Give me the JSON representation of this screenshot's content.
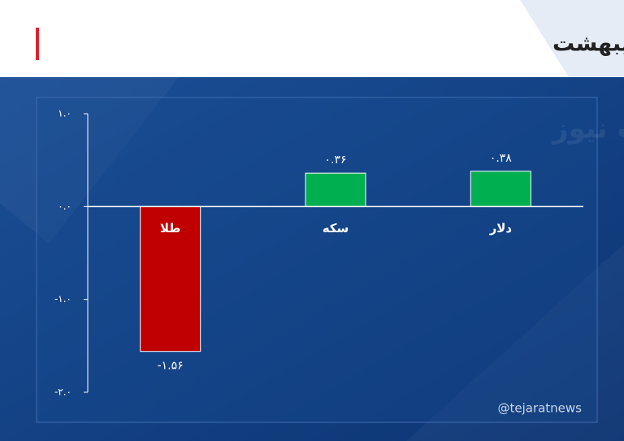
{
  "chart_data": {
    "type": "bar",
    "title": "جدول مقایسه‌ای بازدهی بازارها در اردیبهشت",
    "watermark": "تجارت نیوز",
    "handle": "@tejaratnews",
    "categories": [
      "طلا",
      "سکه",
      "دلار"
    ],
    "values": [
      -1.56,
      0.36,
      0.38
    ],
    "value_labels": [
      "-۱.۵۶",
      "۰.۳۶",
      "۰.۳۸"
    ],
    "colors": [
      "#c00000",
      "#00b050",
      "#00b050"
    ],
    "ylim": [
      -2,
      1
    ],
    "yticks": [
      {
        "value": 1,
        "label": "۱.۰"
      },
      {
        "value": 0,
        "label": "۰.۰"
      },
      {
        "value": -1,
        "label": "-۱.۰"
      },
      {
        "value": -2,
        "label": "-۲.۰"
      }
    ],
    "grid": false
  }
}
